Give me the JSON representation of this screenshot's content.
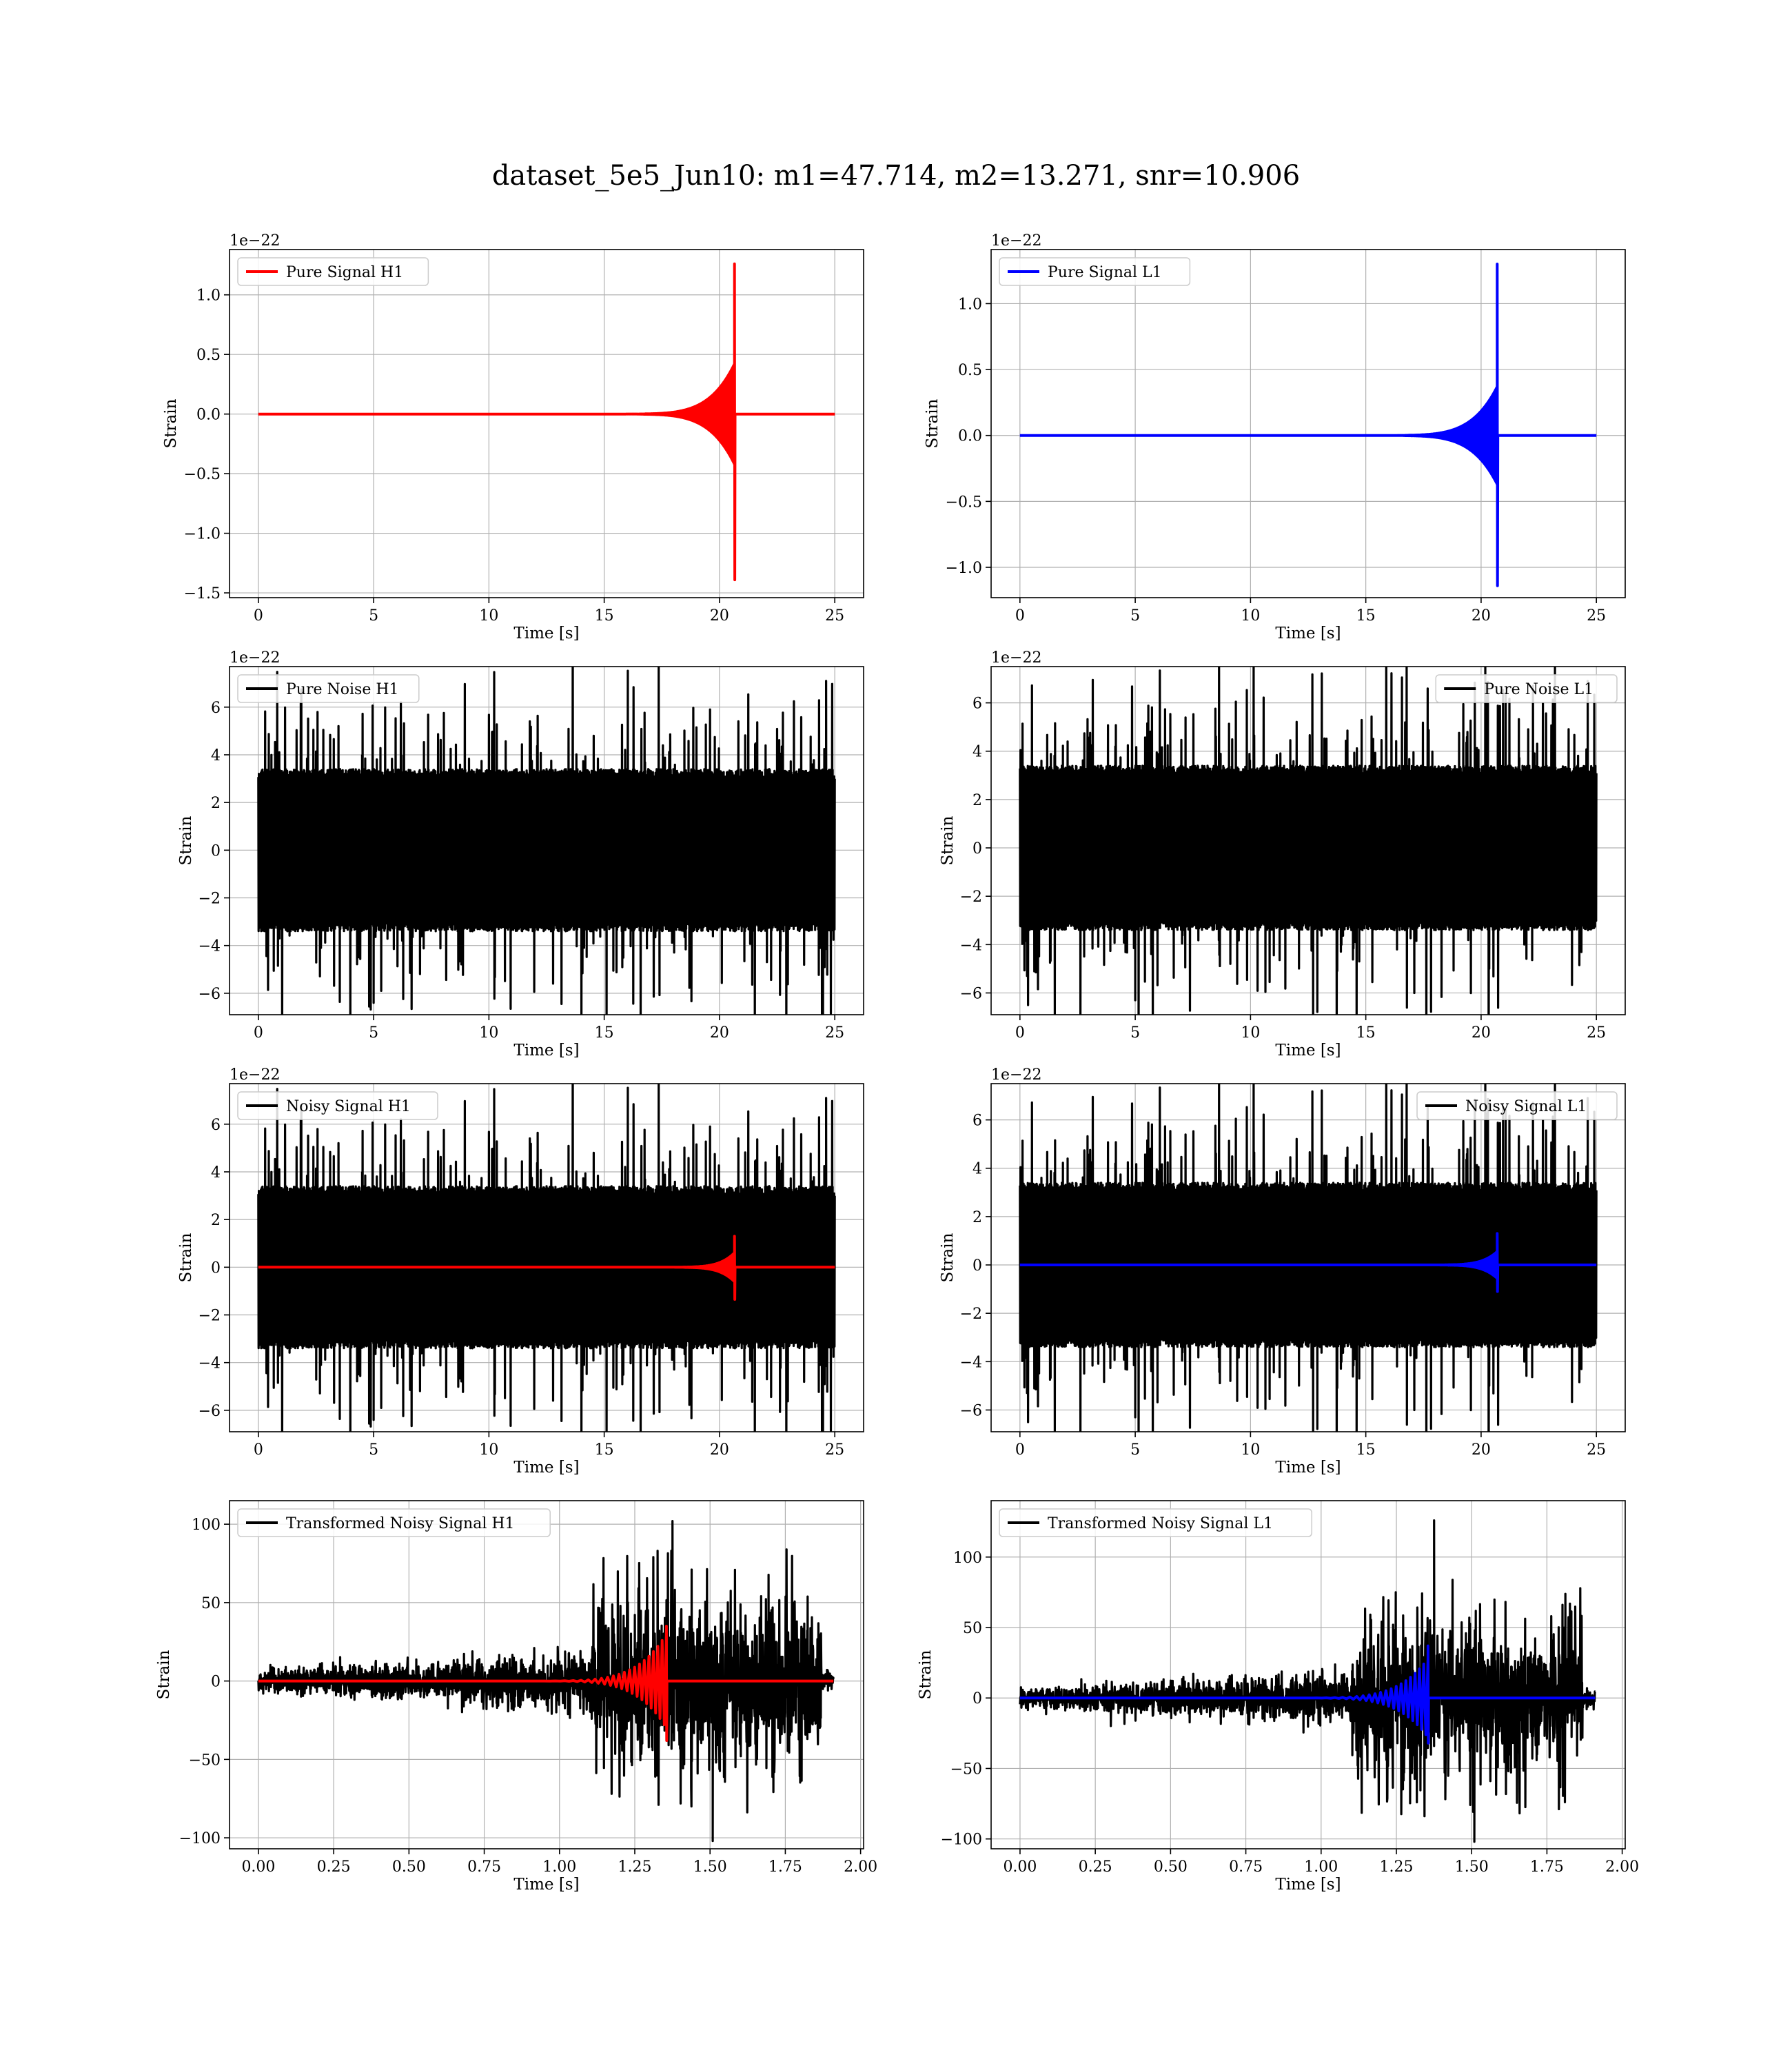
{
  "suptitle": "dataset_5e5_Jun10: m1=47.714, m2=13.271, snr=10.906",
  "colors": {
    "h1_signal": "#ff0000",
    "l1_signal": "#0000ff",
    "noise": "#000000",
    "grid": "#b0b0b0"
  },
  "chart_data": [
    {
      "type": "line",
      "panel": "r0c0",
      "xlabel": "Time [s]",
      "ylabel": "Strain",
      "offset_text": "1e−22",
      "xlim": [
        -1.25,
        26.25
      ],
      "ylim": [
        -1.54,
        1.38
      ],
      "xticks": [
        0,
        5,
        10,
        15,
        20,
        25
      ],
      "xtick_labels": [
        "0",
        "5",
        "10",
        "15",
        "20",
        "25"
      ],
      "yticks": [
        1.0,
        0.5,
        0.0,
        -0.5,
        -1.0,
        -1.5
      ],
      "ytick_labels": [
        "1.0",
        "0.5",
        "0.0",
        "−0.5",
        "−1.0",
        "−1.5"
      ],
      "legend": {
        "position": "upper-left",
        "entries": [
          {
            "label": "Pure Signal H1",
            "color": "#ff0000"
          }
        ]
      },
      "series": [
        {
          "name": "Pure Signal H1",
          "kind": "chirp",
          "color": "#ff0000",
          "x_range": [
            0,
            25
          ],
          "merger_time": 20.65,
          "onset_time": 14.5,
          "pre_merger_amp": 0.42,
          "peak_pos": 1.26,
          "peak_neg": -1.39,
          "seed": 11
        }
      ]
    },
    {
      "type": "line",
      "panel": "r0c1",
      "xlabel": "Time [s]",
      "ylabel": "Strain",
      "offset_text": "1e−22",
      "xlim": [
        -1.25,
        26.25
      ],
      "ylim": [
        -1.23,
        1.41
      ],
      "xticks": [
        0,
        5,
        10,
        15,
        20,
        25
      ],
      "xtick_labels": [
        "0",
        "5",
        "10",
        "15",
        "20",
        "25"
      ],
      "yticks": [
        1.0,
        0.5,
        0.0,
        -0.5,
        -1.0
      ],
      "ytick_labels": [
        "1.0",
        "0.5",
        "0.0",
        "−0.5",
        "−1.0"
      ],
      "legend": {
        "position": "upper-left",
        "entries": [
          {
            "label": "Pure Signal L1",
            "color": "#0000ff"
          }
        ]
      },
      "series": [
        {
          "name": "Pure Signal L1",
          "kind": "chirp",
          "color": "#0000ff",
          "x_range": [
            0,
            25
          ],
          "merger_time": 20.7,
          "onset_time": 14.5,
          "pre_merger_amp": 0.37,
          "peak_pos": 1.3,
          "peak_neg": -1.14,
          "seed": 12
        }
      ]
    },
    {
      "type": "line",
      "panel": "r1c0",
      "xlabel": "Time [s]",
      "ylabel": "Strain",
      "offset_text": "1e−22",
      "xlim": [
        -1.25,
        26.25
      ],
      "ylim": [
        -6.9,
        7.7
      ],
      "xticks": [
        0,
        5,
        10,
        15,
        20,
        25
      ],
      "xtick_labels": [
        "0",
        "5",
        "10",
        "15",
        "20",
        "25"
      ],
      "yticks": [
        6,
        4,
        2,
        0,
        -2,
        -4,
        -6
      ],
      "ytick_labels": [
        "6",
        "4",
        "2",
        "0",
        "−2",
        "−4",
        "−6"
      ],
      "legend": {
        "position": "upper-left",
        "entries": [
          {
            "label": "Pure Noise H1",
            "color": "#000000"
          }
        ]
      },
      "series": [
        {
          "name": "Pure Noise H1",
          "kind": "noise",
          "color": "#000000",
          "x_range": [
            0,
            25
          ],
          "core_amp": 3.4,
          "max": 7.1,
          "min": -6.4,
          "seed": 21
        }
      ]
    },
    {
      "type": "line",
      "panel": "r1c1",
      "xlabel": "Time [s]",
      "ylabel": "Strain",
      "offset_text": "1e−22",
      "xlim": [
        -1.25,
        26.25
      ],
      "ylim": [
        -6.9,
        7.5
      ],
      "xticks": [
        0,
        5,
        10,
        15,
        20,
        25
      ],
      "xtick_labels": [
        "0",
        "5",
        "10",
        "15",
        "20",
        "25"
      ],
      "yticks": [
        6,
        4,
        2,
        0,
        -2,
        -4,
        -6
      ],
      "ytick_labels": [
        "6",
        "4",
        "2",
        "0",
        "−2",
        "−4",
        "−6"
      ],
      "legend": {
        "position": "upper-right",
        "entries": [
          {
            "label": "Pure Noise L1",
            "color": "#000000"
          }
        ]
      },
      "series": [
        {
          "name": "Pure Noise L1",
          "kind": "noise",
          "color": "#000000",
          "x_range": [
            0,
            25
          ],
          "core_amp": 3.4,
          "max": 6.9,
          "min": -6.3,
          "seed": 22
        }
      ]
    },
    {
      "type": "line",
      "panel": "r2c0",
      "xlabel": "Time [s]",
      "ylabel": "Strain",
      "offset_text": "1e−22",
      "xlim": [
        -1.25,
        26.25
      ],
      "ylim": [
        -6.9,
        7.7
      ],
      "xticks": [
        0,
        5,
        10,
        15,
        20,
        25
      ],
      "xtick_labels": [
        "0",
        "5",
        "10",
        "15",
        "20",
        "25"
      ],
      "yticks": [
        6,
        4,
        2,
        0,
        -2,
        -4,
        -6
      ],
      "ytick_labels": [
        "6",
        "4",
        "2",
        "0",
        "−2",
        "−4",
        "−6"
      ],
      "legend": {
        "position": "upper-left",
        "entries": [
          {
            "label": "Noisy Signal H1",
            "color": "#000000"
          }
        ]
      },
      "series": [
        {
          "name": "Noisy Signal H1",
          "kind": "noise",
          "color": "#000000",
          "x_range": [
            0,
            25
          ],
          "core_amp": 3.4,
          "max": 7.1,
          "min": -6.4,
          "seed": 21
        },
        {
          "kind": "chirp",
          "color": "#ff0000",
          "x_range": [
            0,
            25
          ],
          "merger_time": 20.65,
          "onset_time": 17.0,
          "pre_merger_amp": 0.6,
          "peak_pos": 1.3,
          "peak_neg": -1.35,
          "seed": 31
        }
      ]
    },
    {
      "type": "line",
      "panel": "r2c1",
      "xlabel": "Time [s]",
      "ylabel": "Strain",
      "offset_text": "1e−22",
      "xlim": [
        -1.25,
        26.25
      ],
      "ylim": [
        -6.9,
        7.5
      ],
      "xticks": [
        0,
        5,
        10,
        15,
        20,
        25
      ],
      "xtick_labels": [
        "0",
        "5",
        "10",
        "15",
        "20",
        "25"
      ],
      "yticks": [
        6,
        4,
        2,
        0,
        -2,
        -4,
        -6
      ],
      "ytick_labels": [
        "6",
        "4",
        "2",
        "0",
        "−2",
        "−4",
        "−6"
      ],
      "legend": {
        "position": "upper-right",
        "entries": [
          {
            "label": "Noisy Signal L1",
            "color": "#000000"
          }
        ]
      },
      "series": [
        {
          "name": "Noisy Signal L1",
          "kind": "noise",
          "color": "#000000",
          "x_range": [
            0,
            25
          ],
          "core_amp": 3.4,
          "max": 6.9,
          "min": -6.3,
          "seed": 22
        },
        {
          "kind": "chirp",
          "color": "#0000ff",
          "x_range": [
            0,
            25
          ],
          "merger_time": 20.7,
          "onset_time": 17.0,
          "pre_merger_amp": 0.55,
          "peak_pos": 1.3,
          "peak_neg": -1.1,
          "seed": 32
        }
      ]
    },
    {
      "type": "line",
      "panel": "r3c0",
      "xlabel": "Time [s]",
      "ylabel": "Strain",
      "offset_text": "",
      "xlim": [
        -0.096,
        2.01
      ],
      "ylim": [
        -107,
        115
      ],
      "xticks": [
        0.0,
        0.25,
        0.5,
        0.75,
        1.0,
        1.25,
        1.5,
        1.75,
        2.0
      ],
      "xtick_labels": [
        "0.00",
        "0.25",
        "0.50",
        "0.75",
        "1.00",
        "1.25",
        "1.50",
        "1.75",
        "2.00"
      ],
      "yticks": [
        100,
        50,
        0,
        -50,
        -100
      ],
      "ytick_labels": [
        "100",
        "50",
        "0",
        "−50",
        "−100"
      ],
      "legend": {
        "position": "upper-left",
        "entries": [
          {
            "label": "Transformed Noisy Signal H1",
            "color": "#000000"
          }
        ]
      },
      "series": [
        {
          "name": "Transformed Noisy Signal H1",
          "kind": "tnoise",
          "color": "#000000",
          "x_range": [
            0,
            1.91
          ],
          "step_time": 1.1,
          "taper_end": 1.87,
          "early_amp": 6,
          "late_amp": 42,
          "max": 102,
          "min": -102,
          "seed": 41
        },
        {
          "kind": "chirp",
          "color": "#ff0000",
          "x_range": [
            0,
            1.91
          ],
          "merger_time": 1.355,
          "onset_time": 0.8,
          "pre_merger_amp": 30,
          "peak_pos": 35,
          "peak_neg": -38,
          "wiggles": 22,
          "seed": 51
        }
      ]
    },
    {
      "type": "line",
      "panel": "r3c1",
      "xlabel": "Time [s]",
      "ylabel": "Strain",
      "offset_text": "",
      "xlim": [
        -0.096,
        2.01
      ],
      "ylim": [
        -107,
        140
      ],
      "xticks": [
        0.0,
        0.25,
        0.5,
        0.75,
        1.0,
        1.25,
        1.5,
        1.75,
        2.0
      ],
      "xtick_labels": [
        "0.00",
        "0.25",
        "0.50",
        "0.75",
        "1.00",
        "1.25",
        "1.50",
        "1.75",
        "2.00"
      ],
      "yticks": [
        100,
        50,
        0,
        -50,
        -100
      ],
      "ytick_labels": [
        "100",
        "50",
        "0",
        "−50",
        "−100"
      ],
      "legend": {
        "position": "upper-left",
        "entries": [
          {
            "label": "Transformed Noisy Signal L1",
            "color": "#000000"
          }
        ]
      },
      "series": [
        {
          "name": "Transformed Noisy Signal L1",
          "kind": "tnoise",
          "color": "#000000",
          "x_range": [
            0,
            1.91
          ],
          "step_time": 1.1,
          "taper_end": 1.87,
          "early_amp": 6,
          "late_amp": 42,
          "max": 126,
          "min": -102,
          "seed": 42
        },
        {
          "kind": "chirp",
          "color": "#0000ff",
          "x_range": [
            0,
            1.91
          ],
          "merger_time": 1.355,
          "onset_time": 0.8,
          "pre_merger_amp": 28,
          "peak_pos": 37,
          "peak_neg": -32,
          "wiggles": 22,
          "seed": 52
        }
      ]
    }
  ]
}
